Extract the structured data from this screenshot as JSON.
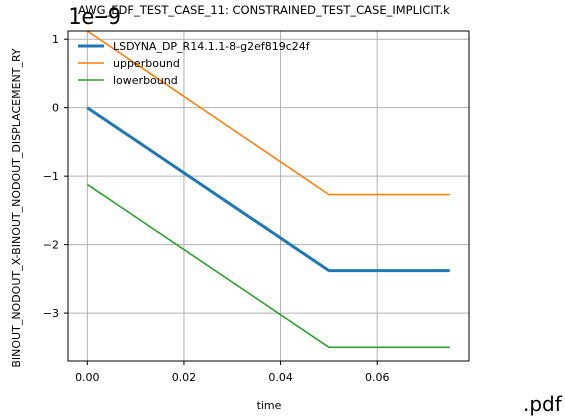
{
  "page_suffix": ".pdf",
  "chart_data": {
    "type": "line",
    "title": "AWG_EDF_TEST_CASE_11: CONSTRAINED_TEST_CASE_IMPLICIT.k",
    "offset_text": "1e−9",
    "xlabel": "time",
    "ylabel": "BINOUT_NODOUT_X-BINOUT_NODOUT_DISPLACEMENT_RY",
    "xlim": [
      -0.004,
      0.079
    ],
    "ylim": [
      -3.7,
      1.12
    ],
    "grid": true,
    "legend_position": "upper-left",
    "x_ticks": [
      0.0,
      0.02,
      0.04,
      0.06
    ],
    "x_tick_labels": [
      "0.00",
      "0.02",
      "0.04",
      "0.06"
    ],
    "y_ticks": [
      1,
      0,
      -1,
      -2,
      -3
    ],
    "y_tick_labels": [
      "1",
      "0",
      "−1",
      "−2",
      "−3"
    ],
    "series": [
      {
        "name": "LSDYNA_DP_R14.1.1-8-g2ef819c24f",
        "color": "#1f77b4",
        "width": 3,
        "x": [
          0.0,
          0.05,
          0.075
        ],
        "y": [
          0.0,
          -2.38,
          -2.38
        ]
      },
      {
        "name": "upperbound",
        "color": "#ff7f0e",
        "width": 1.6,
        "x": [
          0.0,
          0.05,
          0.075
        ],
        "y": [
          1.12,
          -1.27,
          -1.27
        ]
      },
      {
        "name": "lowerbound",
        "color": "#2ca02c",
        "width": 1.6,
        "x": [
          0.0,
          0.05,
          0.075
        ],
        "y": [
          -1.12,
          -3.5,
          -3.5
        ]
      }
    ]
  }
}
